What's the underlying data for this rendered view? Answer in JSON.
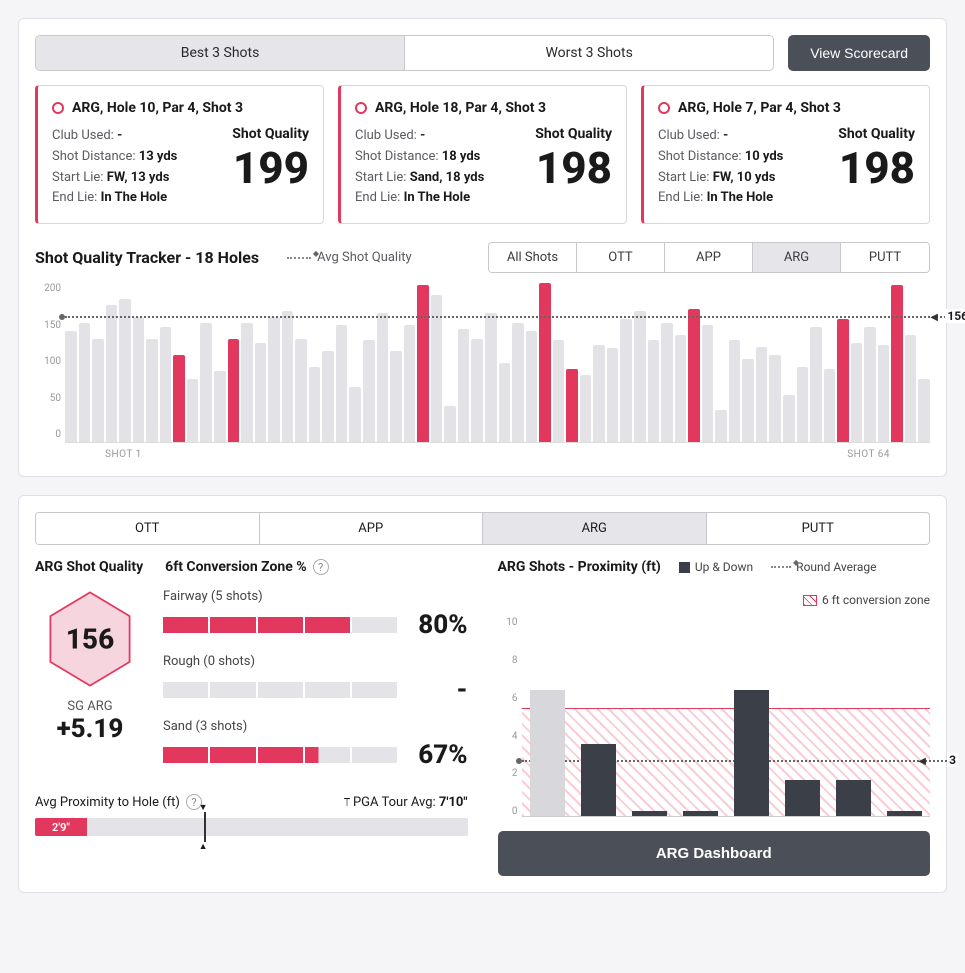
{
  "top_tabs": {
    "best": "Best 3 Shots",
    "worst": "Worst 3 Shots",
    "active": "best"
  },
  "view_scorecard": "View Scorecard",
  "shot_cards": [
    {
      "title": "ARG, Hole 10, Par 4, Shot 3",
      "club_used": "-",
      "shot_distance": "13 yds",
      "start_lie": "FW, 13 yds",
      "end_lie": "In The Hole",
      "quality_label": "Shot Quality",
      "quality_value": "199"
    },
    {
      "title": "ARG, Hole 18, Par 4, Shot 3",
      "club_used": "-",
      "shot_distance": "18 yds",
      "start_lie": "Sand, 18 yds",
      "end_lie": "In The Hole",
      "quality_label": "Shot Quality",
      "quality_value": "198"
    },
    {
      "title": "ARG, Hole 7, Par 4, Shot 3",
      "club_used": "-",
      "shot_distance": "10 yds",
      "start_lie": "FW, 10 yds",
      "end_lie": "In The Hole",
      "quality_label": "Shot Quality",
      "quality_value": "198"
    }
  ],
  "labels": {
    "club": "Club Used:",
    "dist": "Shot Distance:",
    "start": "Start Lie:",
    "end": "End Lie:"
  },
  "tracker": {
    "title": "Shot Quality Tracker - 18 Holes",
    "avg_label": "Avg Shot Quality",
    "filters": [
      "All Shots",
      "OTT",
      "APP",
      "ARG",
      "PUTT"
    ],
    "active_filter": "ARG",
    "ymax": 200,
    "yticks": [
      "200",
      "150",
      "100",
      "50",
      "0"
    ],
    "avg_value": 156,
    "x_first": "SHOT 1",
    "x_last": "SHOT 64",
    "colors": {
      "bar": "#e3e3e7",
      "highlight": "#e3385d"
    },
    "bars": [
      {
        "v": 140,
        "h": 0
      },
      {
        "v": 150,
        "h": 0
      },
      {
        "v": 130,
        "h": 0
      },
      {
        "v": 172,
        "h": 0
      },
      {
        "v": 180,
        "h": 0
      },
      {
        "v": 158,
        "h": 0
      },
      {
        "v": 130,
        "h": 0
      },
      {
        "v": 145,
        "h": 0
      },
      {
        "v": 110,
        "h": 1
      },
      {
        "v": 80,
        "h": 0
      },
      {
        "v": 150,
        "h": 0
      },
      {
        "v": 90,
        "h": 0
      },
      {
        "v": 130,
        "h": 1
      },
      {
        "v": 150,
        "h": 0
      },
      {
        "v": 125,
        "h": 0
      },
      {
        "v": 158,
        "h": 0
      },
      {
        "v": 165,
        "h": 0
      },
      {
        "v": 130,
        "h": 0
      },
      {
        "v": 95,
        "h": 0
      },
      {
        "v": 115,
        "h": 0
      },
      {
        "v": 148,
        "h": 0
      },
      {
        "v": 70,
        "h": 0
      },
      {
        "v": 128,
        "h": 0
      },
      {
        "v": 162,
        "h": 0
      },
      {
        "v": 115,
        "h": 0
      },
      {
        "v": 148,
        "h": 0
      },
      {
        "v": 198,
        "h": 1
      },
      {
        "v": 185,
        "h": 0
      },
      {
        "v": 45,
        "h": 0
      },
      {
        "v": 142,
        "h": 0
      },
      {
        "v": 130,
        "h": 0
      },
      {
        "v": 162,
        "h": 0
      },
      {
        "v": 100,
        "h": 0
      },
      {
        "v": 150,
        "h": 0
      },
      {
        "v": 140,
        "h": 0
      },
      {
        "v": 200,
        "h": 1
      },
      {
        "v": 128,
        "h": 0
      },
      {
        "v": 92,
        "h": 1
      },
      {
        "v": 85,
        "h": 0
      },
      {
        "v": 122,
        "h": 0
      },
      {
        "v": 118,
        "h": 0
      },
      {
        "v": 155,
        "h": 0
      },
      {
        "v": 165,
        "h": 0
      },
      {
        "v": 128,
        "h": 0
      },
      {
        "v": 150,
        "h": 0
      },
      {
        "v": 135,
        "h": 0
      },
      {
        "v": 168,
        "h": 1
      },
      {
        "v": 148,
        "h": 0
      },
      {
        "v": 40,
        "h": 0
      },
      {
        "v": 128,
        "h": 0
      },
      {
        "v": 105,
        "h": 0
      },
      {
        "v": 120,
        "h": 0
      },
      {
        "v": 110,
        "h": 0
      },
      {
        "v": 60,
        "h": 0
      },
      {
        "v": 95,
        "h": 0
      },
      {
        "v": 145,
        "h": 0
      },
      {
        "v": 92,
        "h": 0
      },
      {
        "v": 155,
        "h": 1
      },
      {
        "v": 125,
        "h": 0
      },
      {
        "v": 145,
        "h": 0
      },
      {
        "v": 122,
        "h": 0
      },
      {
        "v": 198,
        "h": 1
      },
      {
        "v": 135,
        "h": 0
      },
      {
        "v": 80,
        "h": 0
      }
    ]
  },
  "lower_tabs": {
    "items": [
      "OTT",
      "APP",
      "ARG",
      "PUTT"
    ],
    "active": "ARG"
  },
  "arg_quality": {
    "title": "ARG Shot Quality",
    "hex_value": "156",
    "hex_fill": "#f7d5de",
    "hex_stroke": "#e3385d",
    "sg_label": "SG ARG",
    "sg_value": "+5.19",
    "conv_title": "6ft Conversion Zone %",
    "rows": [
      {
        "label": "Fairway (5 shots)",
        "filled": 4,
        "total": 5,
        "pct": "80%"
      },
      {
        "label": "Rough (0 shots)",
        "filled": 0,
        "total": 5,
        "pct": "-"
      },
      {
        "label": "Sand (3 shots)",
        "filled": 3.3,
        "total": 5,
        "pct": "67%"
      }
    ],
    "avg_prox_label": "Avg Proximity to Hole (ft)",
    "pga_label": "PGA Tour Avg:",
    "pga_value": "7'10\"",
    "prox_value": "2'9\"",
    "prox_fill_pct": 12,
    "prox_marker_pct": 39
  },
  "prox_chart": {
    "title": "ARG Shots - Proximity (ft)",
    "legend": {
      "updown": "Up & Down",
      "round": "Round Average",
      "zone": "6 ft conversion zone"
    },
    "ymax": 11,
    "yticks": [
      "10",
      "8",
      "6",
      "4",
      "2",
      "0"
    ],
    "zone_top": 6,
    "avg_value": 3,
    "bar_color": "#3a3f48",
    "miss_color": "#d8d8dc",
    "bars": [
      {
        "v": 7,
        "up": 0
      },
      {
        "v": 4,
        "up": 1
      },
      {
        "v": 0.3,
        "up": 1
      },
      {
        "v": 0.3,
        "up": 1
      },
      {
        "v": 7,
        "up": 1
      },
      {
        "v": 2,
        "up": 1
      },
      {
        "v": 2,
        "up": 1
      },
      {
        "v": 0.3,
        "up": 1
      }
    ],
    "dashboard_btn": "ARG Dashboard"
  }
}
